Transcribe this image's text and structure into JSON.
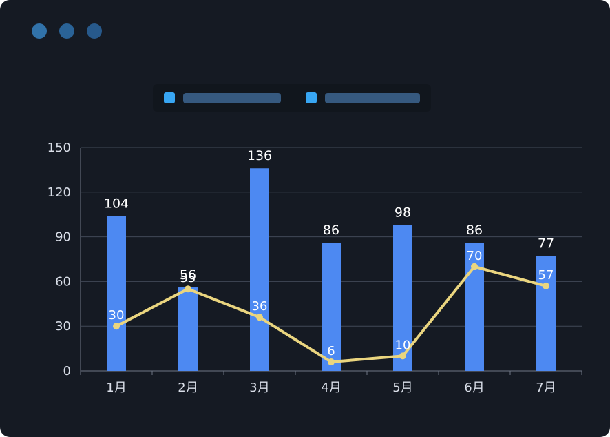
{
  "window": {
    "dots": [
      "#3172a9",
      "#2a6397",
      "#27598b"
    ]
  },
  "colors": {
    "background": "#151a23",
    "grid": "#414957",
    "axis": "#6e7685",
    "tick_text": "#d9dee8",
    "label_text": "#ffffff"
  },
  "legend": {
    "items": [
      {
        "swatch_color": "#38a6f3",
        "label_color": "#36597f"
      },
      {
        "swatch_color": "#38a6f3",
        "label_color": "#36597f"
      }
    ]
  },
  "chart_data": {
    "type": "bar",
    "categories": [
      "1月",
      "2月",
      "3月",
      "4月",
      "5月",
      "6月",
      "7月"
    ],
    "series": [
      {
        "name": "bar-series",
        "type": "bar",
        "color": "#4d89f2",
        "values": [
          104,
          56,
          136,
          86,
          98,
          86,
          77
        ]
      },
      {
        "name": "line-series",
        "type": "line",
        "color": "#ead57f",
        "values": [
          30,
          55,
          36,
          6,
          10,
          70,
          57
        ]
      }
    ],
    "ylim": [
      0,
      150
    ],
    "yticks": [
      0,
      30,
      60,
      90,
      120,
      150
    ],
    "grid": true,
    "legend_position": "top-center"
  }
}
